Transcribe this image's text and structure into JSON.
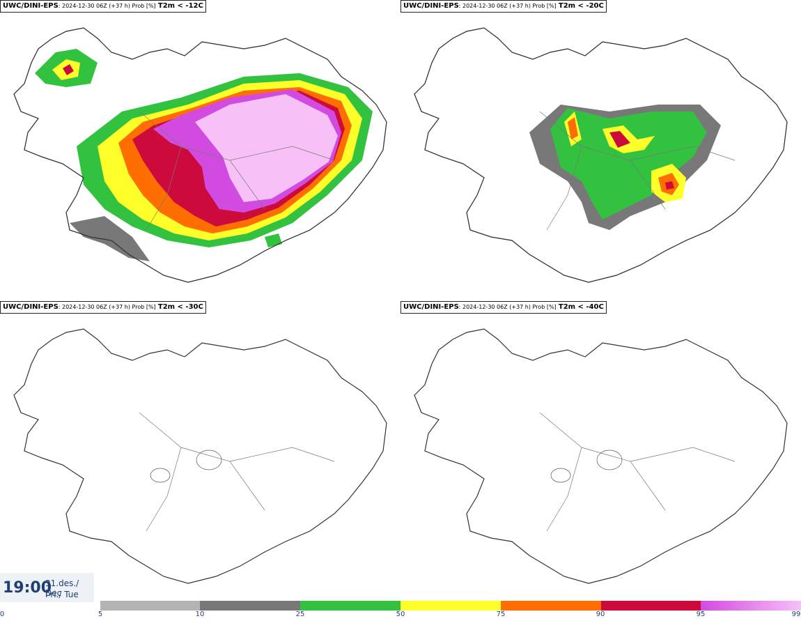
{
  "panels": [
    {
      "model": "UWC/DINI-EPS",
      "meta": ": 2024-12-30 06Z (+37 h) Prob [%]",
      "threshold": "T2m < -12C"
    },
    {
      "model": "UWC/DINI-EPS",
      "meta": ": 2024-12-30 06Z (+37 h) Prob [%]",
      "threshold": "T2m < -20C"
    },
    {
      "model": "UWC/DINI-EPS",
      "meta": ": 2024-12-30 06Z (+37 h) Prob [%]",
      "threshold": "T2m < -30C"
    },
    {
      "model": "UWC/DINI-EPS",
      "meta": ": 2024-12-30 06Z (+37 h) Prob [%]",
      "threshold": "T2m < -40C"
    }
  ],
  "time": {
    "clock": "19:00",
    "date_line": "31.des./ Dec",
    "day_line": "Þri./ Tue"
  },
  "legend": {
    "ticks": [
      "0",
      "5",
      "10",
      "25",
      "50",
      "75",
      "90",
      "95",
      "99"
    ],
    "colors": [
      "#b4b4b4",
      "#787878",
      "#33c140",
      "#ffff2a",
      "#ff6e00",
      "#cc0a3c",
      "#d24be0",
      "#f7c0f7"
    ]
  },
  "map_colors": {
    "coast": "#333333",
    "rivers": "#777777"
  }
}
